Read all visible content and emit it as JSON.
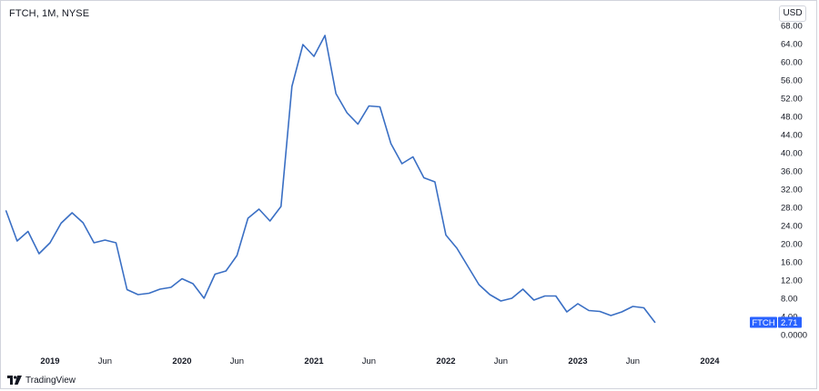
{
  "header": {
    "symbol_title": "FTCH, 1M, NYSE",
    "currency": "USD"
  },
  "brand": {
    "name": "TradingView",
    "logo_icon": "tradingview-logo-icon"
  },
  "colors": {
    "line": "#3a6fc4",
    "label_bg": "#2962ff",
    "axis_text": "#131722"
  },
  "last_price": {
    "symbol": "FTCH",
    "value": "2.71"
  },
  "chart_data": {
    "type": "line",
    "title": "",
    "xlabel": "",
    "ylabel": "",
    "ylim": [
      0,
      70
    ],
    "y_tick_labels": [
      "0.0000",
      "4.00",
      "8.00",
      "12.00",
      "16.00",
      "20.00",
      "24.00",
      "28.00",
      "32.00",
      "36.00",
      "40.00",
      "44.00",
      "48.00",
      "52.00",
      "56.00",
      "60.00",
      "64.00",
      "68.00"
    ],
    "y_tick_values": [
      0,
      4,
      8,
      12,
      16,
      20,
      24,
      28,
      32,
      36,
      40,
      44,
      48,
      52,
      56,
      60,
      64,
      68
    ],
    "x_ticks": [
      {
        "label": "2019",
        "date": "2019-01",
        "bold": true
      },
      {
        "label": "Jun",
        "date": "2019-06",
        "bold": false
      },
      {
        "label": "2020",
        "date": "2020-01",
        "bold": true
      },
      {
        "label": "Jun",
        "date": "2020-06",
        "bold": false
      },
      {
        "label": "2021",
        "date": "2021-01",
        "bold": true
      },
      {
        "label": "Jun",
        "date": "2021-06",
        "bold": false
      },
      {
        "label": "2022",
        "date": "2022-01",
        "bold": true
      },
      {
        "label": "Jun",
        "date": "2022-06",
        "bold": false
      },
      {
        "label": "2023",
        "date": "2023-01",
        "bold": true
      },
      {
        "label": "Jun",
        "date": "2023-06",
        "bold": false
      },
      {
        "label": "2024",
        "date": "2024-01",
        "bold": true
      }
    ],
    "x_range": [
      "2018-09",
      "2024-07"
    ],
    "grid": false,
    "series": [
      {
        "x": [
          "2018-09",
          "2018-10",
          "2018-11",
          "2018-12",
          "2019-01",
          "2019-02",
          "2019-03",
          "2019-04",
          "2019-05",
          "2019-06",
          "2019-07",
          "2019-08",
          "2019-09",
          "2019-10",
          "2019-11",
          "2019-12",
          "2020-01",
          "2020-02",
          "2020-03",
          "2020-04",
          "2020-05",
          "2020-06",
          "2020-07",
          "2020-08",
          "2020-09",
          "2020-10",
          "2020-11",
          "2020-12",
          "2021-01",
          "2021-02",
          "2021-03",
          "2021-04",
          "2021-05",
          "2021-06",
          "2021-07",
          "2021-08",
          "2021-09",
          "2021-10",
          "2021-11",
          "2021-12",
          "2022-01",
          "2022-02",
          "2022-03",
          "2022-04",
          "2022-05",
          "2022-06",
          "2022-07",
          "2022-08",
          "2022-09",
          "2022-10",
          "2022-11",
          "2022-12",
          "2023-01",
          "2023-02",
          "2023-03",
          "2023-04",
          "2023-05",
          "2023-06",
          "2023-07",
          "2023-08"
        ],
        "values": [
          27.2,
          20.6,
          22.7,
          17.8,
          20.2,
          24.5,
          26.8,
          24.6,
          20.2,
          20.8,
          20.2,
          9.9,
          8.8,
          9.1,
          10.0,
          10.4,
          12.3,
          11.2,
          8.0,
          13.3,
          14.0,
          17.4,
          25.6,
          27.6,
          25.0,
          28.2,
          54.6,
          63.8,
          61.2,
          65.8,
          53.0,
          48.8,
          46.3,
          50.3,
          50.1,
          42.0,
          37.6,
          39.1,
          34.5,
          33.6,
          21.9,
          19.0,
          15.0,
          11.0,
          8.8,
          7.4,
          8.0,
          10.0,
          7.6,
          8.5,
          8.5,
          5.0,
          6.8,
          5.3,
          5.1,
          4.2,
          5.0,
          6.2,
          5.9,
          2.71
        ]
      }
    ]
  }
}
